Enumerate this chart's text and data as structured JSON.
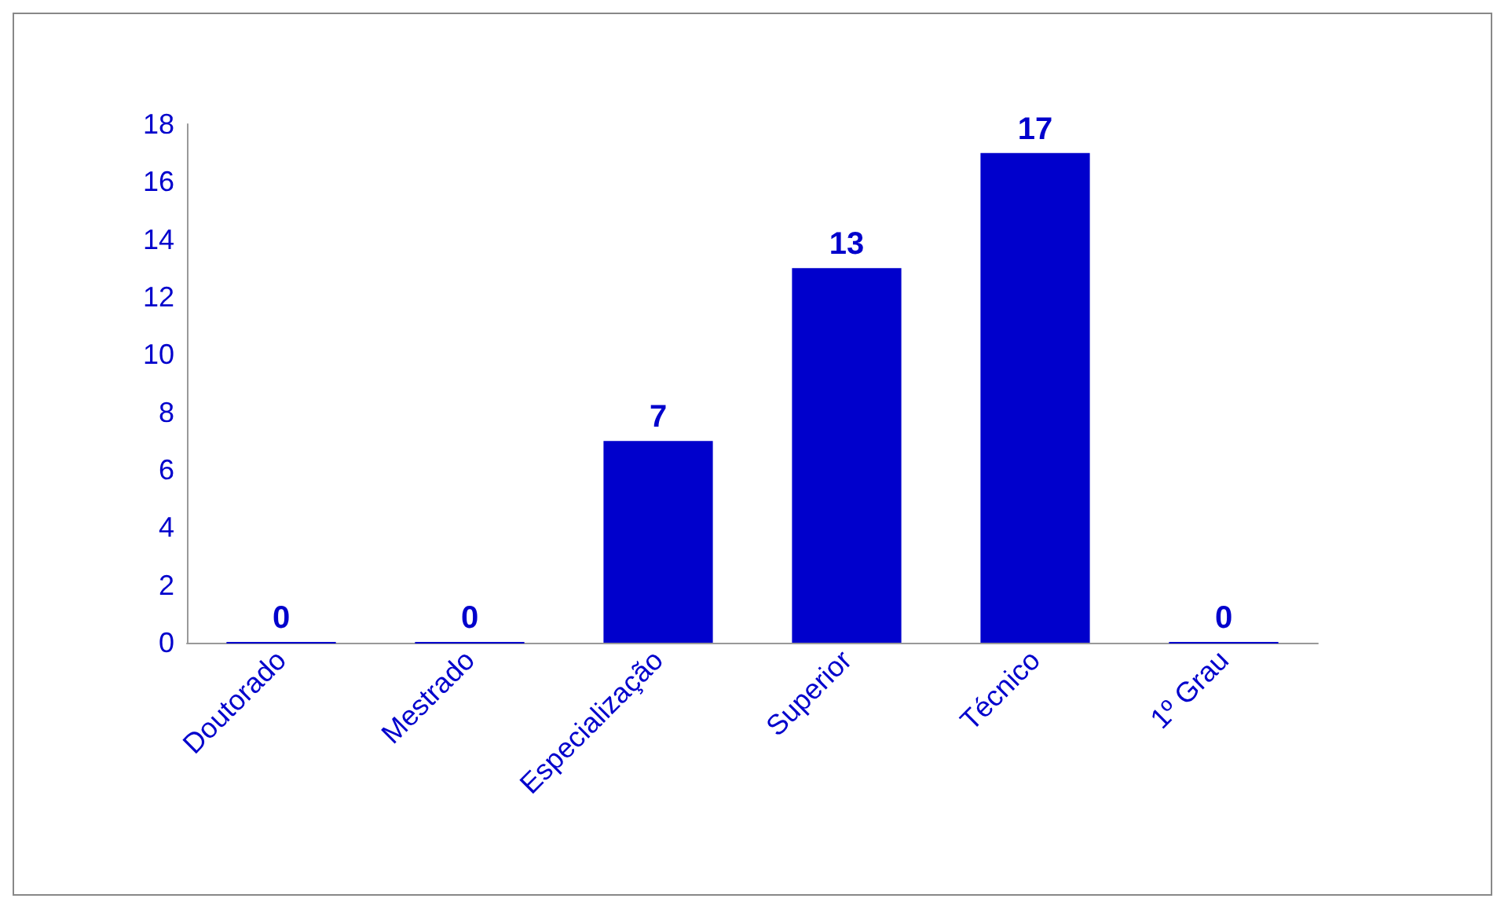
{
  "chart_data": {
    "type": "bar",
    "categories": [
      "Doutorado",
      "Mestrado",
      "Especialização",
      "Superior",
      "Técnico",
      "1º Grau"
    ],
    "values": [
      0,
      0,
      7,
      13,
      17,
      0
    ],
    "color": "#0000cc",
    "ylim": [
      0,
      18
    ],
    "yticks": [
      0,
      2,
      4,
      6,
      8,
      10,
      12,
      14,
      16,
      18
    ],
    "grid": false,
    "data_labels": true
  }
}
